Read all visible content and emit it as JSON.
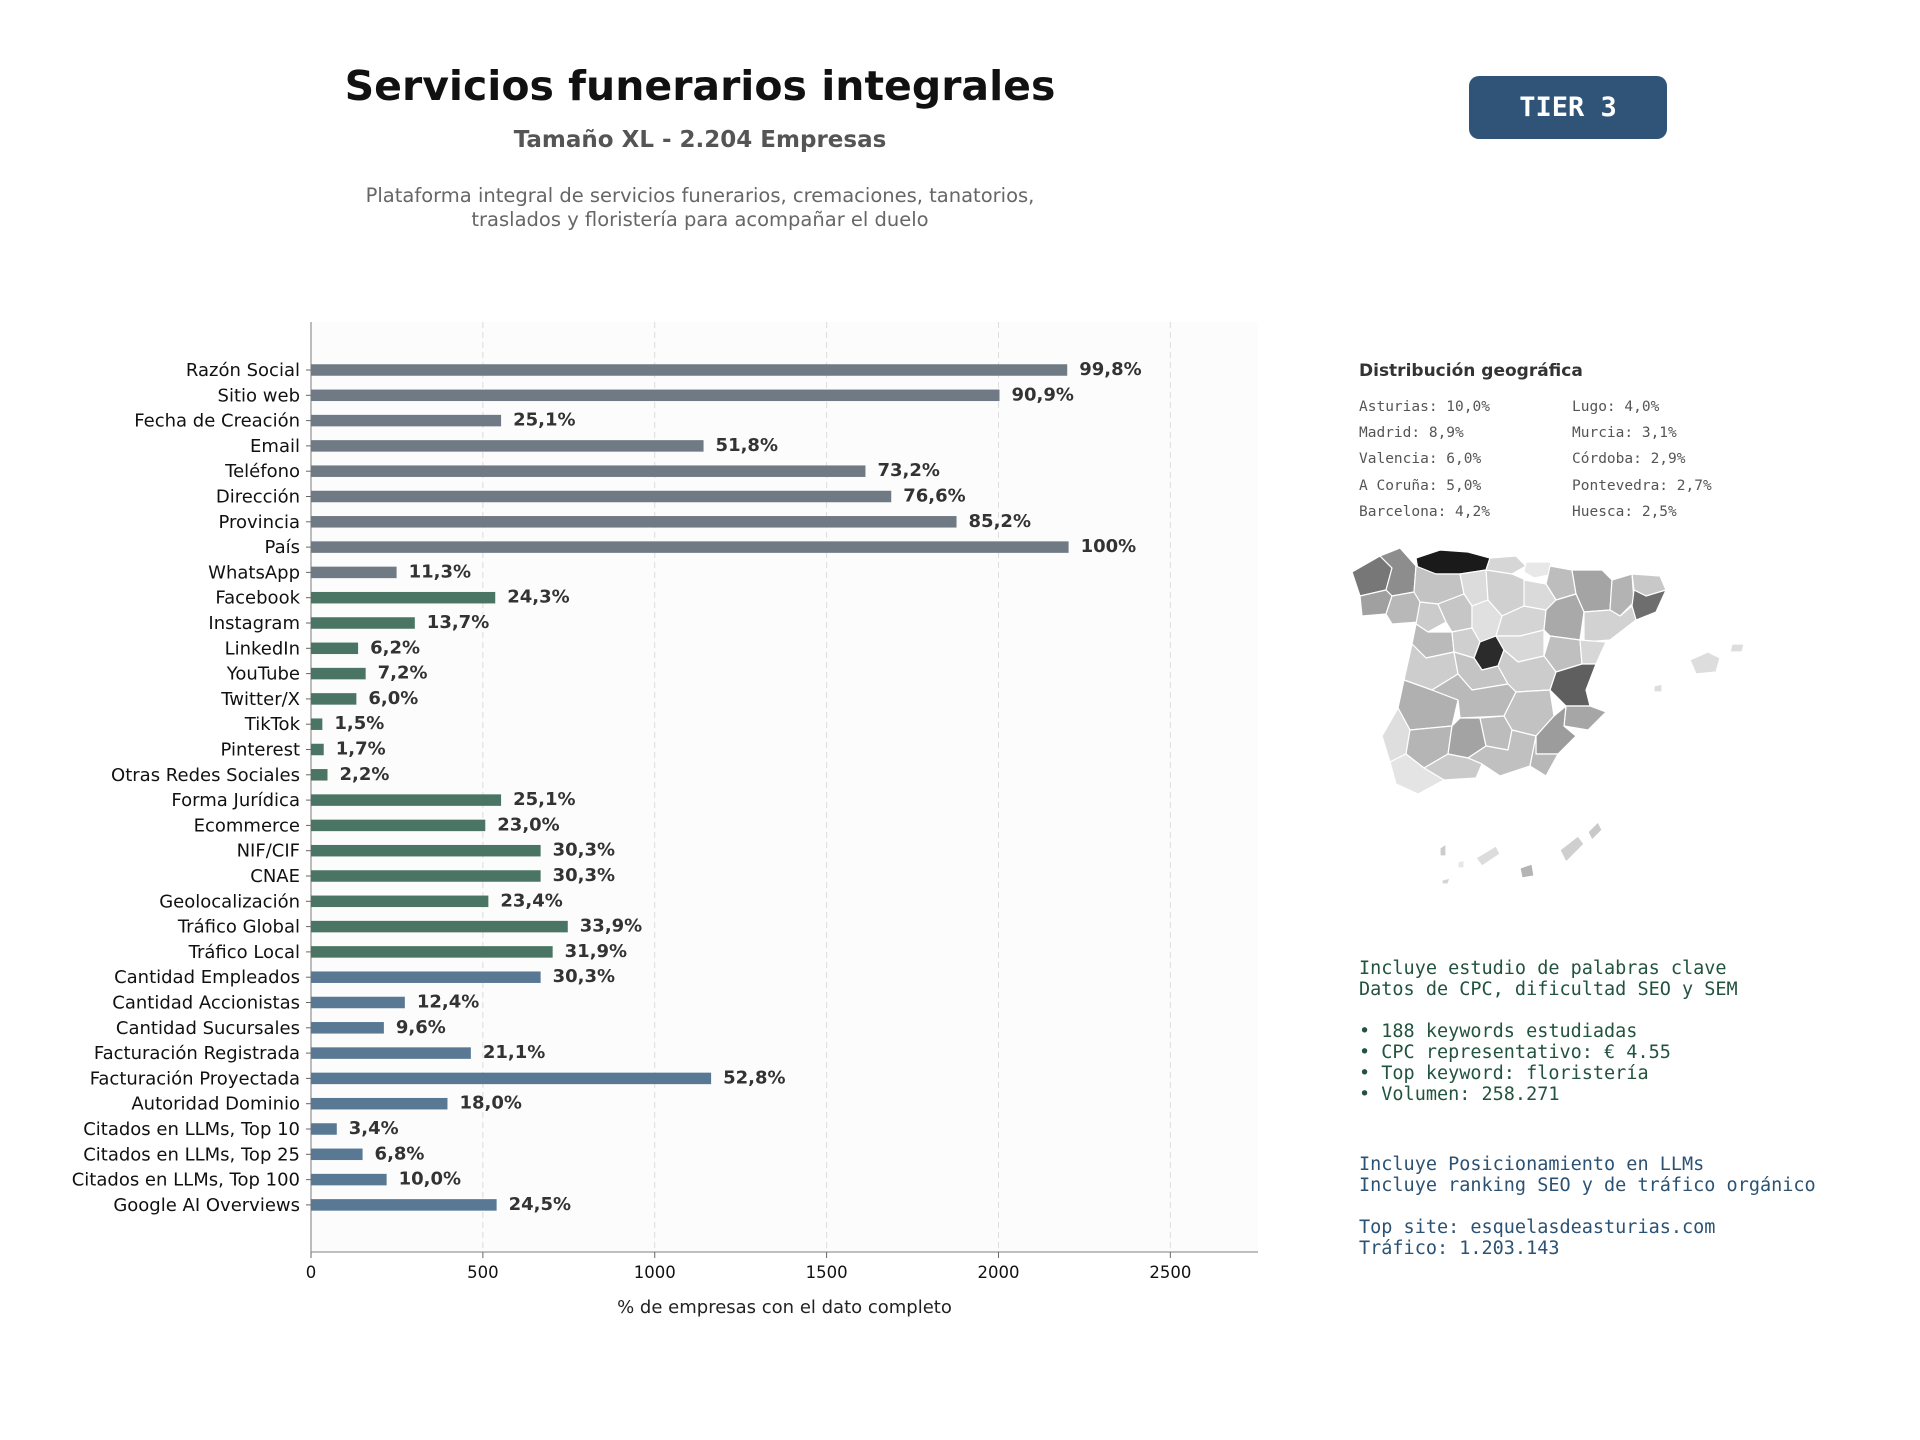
{
  "header": {
    "title": "Servicios funerarios integrales",
    "subtitle": "Tamaño XL - 2.204 Empresas",
    "description_line1": "Plataforma integral de servicios funerarios, cremaciones, tanatorios,",
    "description_line2": "traslados y floristería para acompañar el duelo",
    "tier_badge": "TIER 3"
  },
  "colors": {
    "gray_bar": "#6f7a84",
    "green_bar": "#4a7564",
    "blue_bar": "#587894",
    "badge": "#2f5478"
  },
  "chart_data": {
    "type": "bar",
    "orientation": "horizontal",
    "xlabel": "% de empresas con el dato completo",
    "ylabel": "",
    "xlim": [
      0,
      2755
    ],
    "xticks": [
      0,
      500,
      1000,
      1500,
      2000,
      2500
    ],
    "grid": "vertical dashed",
    "categories": [
      "Razón Social",
      "Sitio web",
      "Fecha de Creación",
      "Email",
      "Teléfono",
      "Dirección",
      "Provincia",
      "País",
      "WhatsApp",
      "Facebook",
      "Instagram",
      "LinkedIn",
      "YouTube",
      "Twitter/X",
      "TikTok",
      "Pinterest",
      "Otras Redes Sociales",
      "Forma Jurídica",
      "Ecommerce",
      "NIF/CIF",
      "CNAE",
      "Geolocalización",
      "Tráfico Global",
      "Tráfico Local",
      "Cantidad Empleados",
      "Cantidad Accionistas",
      "Cantidad Sucursales",
      "Facturación Registrada",
      "Facturación Proyectada",
      "Autoridad Dominio",
      "Citados en LLMs, Top 10",
      "Citados en LLMs, Top 25",
      "Citados en LLMs, Top 100",
      "Google AI Overviews"
    ],
    "values": [
      2200,
      2003,
      553,
      1142,
      1613,
      1688,
      1878,
      2204,
      249,
      536,
      302,
      137,
      159,
      132,
      33,
      37,
      48,
      553,
      507,
      668,
      668,
      516,
      747,
      703,
      668,
      273,
      212,
      465,
      1164,
      397,
      75,
      150,
      220,
      540
    ],
    "labels": [
      "99,8%",
      "90,9%",
      "25,1%",
      "51,8%",
      "73,2%",
      "76,6%",
      "85,2%",
      "100%",
      "11,3%",
      "24,3%",
      "13,7%",
      "6,2%",
      "7,2%",
      "6,0%",
      "1,5%",
      "1,7%",
      "2,2%",
      "25,1%",
      "23,0%",
      "30,3%",
      "30,3%",
      "23,4%",
      "33,9%",
      "31,9%",
      "30,3%",
      "12,4%",
      "9,6%",
      "21,1%",
      "52,8%",
      "18,0%",
      "3,4%",
      "6,8%",
      "10,0%",
      "24,5%"
    ],
    "groups": [
      "gray",
      "gray",
      "gray",
      "gray",
      "gray",
      "gray",
      "gray",
      "gray",
      "gray",
      "green",
      "green",
      "green",
      "green",
      "green",
      "green",
      "green",
      "green",
      "green",
      "green",
      "green",
      "green",
      "green",
      "green",
      "green",
      "blue",
      "blue",
      "blue",
      "blue",
      "blue",
      "blue",
      "blue",
      "blue",
      "blue",
      "blue"
    ]
  },
  "geo": {
    "title": "Distribución geográfica",
    "items": [
      "Asturias: 10,0%",
      "Lugo: 4,0%",
      "Madrid: 8,9%",
      "Murcia: 3,1%",
      "Valencia: 6,0%",
      "Córdoba: 2,9%",
      "A Coruña: 5,0%",
      "Pontevedra: 2,7%",
      "Barcelona: 4,2%",
      "Huesca: 2,5%"
    ]
  },
  "keywords": {
    "lines": [
      "Incluye estudio de palabras clave",
      "Datos de CPC, dificultad SEO y SEM",
      "",
      "• 188 keywords estudiadas",
      "• CPC representativo: € 4.55",
      "• Top keyword: floristería",
      "• Volumen: 258.271"
    ]
  },
  "llm": {
    "lines": [
      "Incluye Posicionamiento en LLMs",
      "Incluye ranking SEO y de tráfico orgánico",
      "",
      "Top site: esquelasdeasturias.com",
      "Tráfico: 1.203.143"
    ]
  }
}
